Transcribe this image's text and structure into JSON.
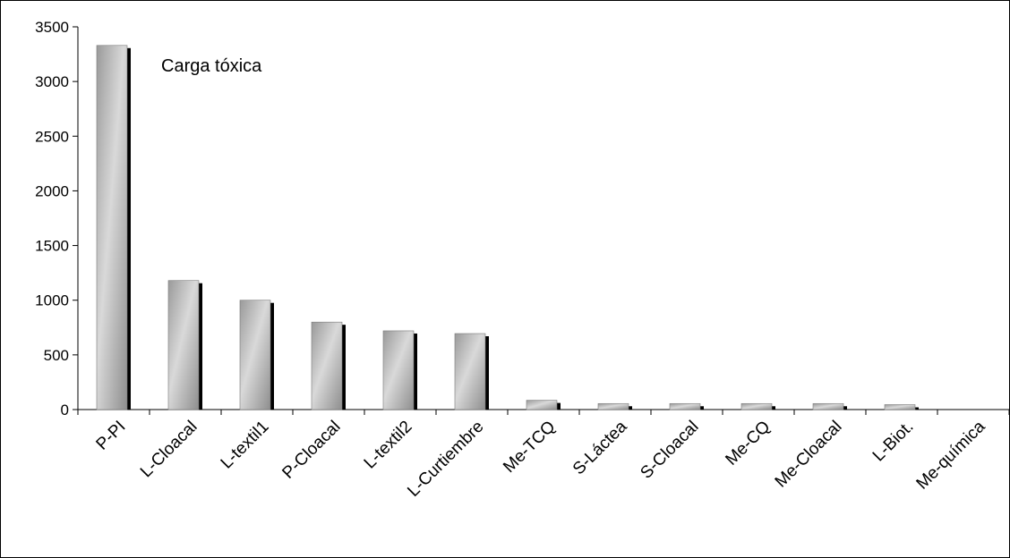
{
  "chart_data": {
    "type": "bar",
    "annotation": "Carga tóxica",
    "categories": [
      "P-PI",
      "L-Cloacal",
      "L-textil1",
      "P-Cloacal",
      "L-textil2",
      "L-Curtiembre",
      "Me-TCQ",
      "S-Láctea",
      "S-Cloacal",
      "Me-CQ",
      "Me-Cloacal",
      "L-Biot.",
      "Me-química"
    ],
    "values": [
      3330,
      1180,
      1000,
      800,
      720,
      695,
      85,
      55,
      55,
      55,
      55,
      45,
      0
    ],
    "ylim": [
      0,
      3500
    ],
    "yticks": [
      0,
      500,
      1000,
      1500,
      2000,
      2500,
      3000,
      3500
    ],
    "grid": false,
    "legend": "none",
    "colors": {
      "bar_light": "#d6d6d6",
      "bar_dark": "#8c8c8c",
      "shadow": "#000000",
      "axis": "#000000"
    }
  }
}
